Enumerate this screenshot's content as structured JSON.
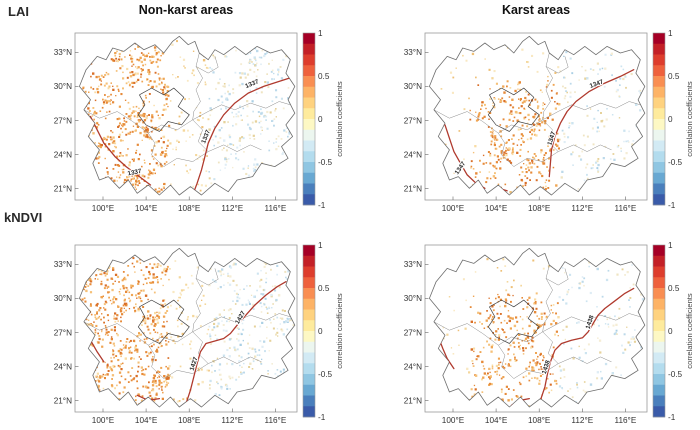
{
  "figure": {
    "rows": [
      {
        "label": "LAI"
      },
      {
        "label": "kNDVI"
      }
    ],
    "columns": [
      {
        "title": "Non-karst areas"
      },
      {
        "title": "Karst areas"
      }
    ]
  },
  "axes": {
    "lat_tick_labels": [
      "33°N",
      "30°N",
      "27°N",
      "24°N",
      "21°N"
    ],
    "lat_tick_values": [
      33,
      30,
      27,
      24,
      21
    ],
    "lon_tick_labels": [
      "100°E",
      "104°E",
      "108°E",
      "112°E",
      "116°E"
    ],
    "lon_tick_values": [
      100,
      104,
      108,
      112,
      116
    ],
    "lon_range": [
      97.4,
      118.0
    ],
    "lat_range": [
      20.0,
      34.7
    ]
  },
  "colorbar": {
    "label": "correlation coefficients",
    "tick_labels": [
      "1",
      "0.5",
      "0",
      "-0.5",
      "-1"
    ],
    "tick_values": [
      1,
      0.5,
      0,
      -0.5,
      -1
    ],
    "range": [
      -1,
      1
    ],
    "segment_colors_top_to_bottom": [
      "#a50026",
      "#c32027",
      "#dd3d2d",
      "#ee613d",
      "#f98e52",
      "#fdb366",
      "#fed27f",
      "#feeb9d",
      "#fdf8c4",
      "#ecf6ef",
      "#d2eaf4",
      "#b3dcee",
      "#8fc6e2",
      "#68a8d2",
      "#4a7fbc",
      "#3a5ba9"
    ]
  },
  "panels": [
    {
      "id": "lai-non-karst",
      "row": "LAI",
      "column": "Non-karst areas",
      "contour_label": "1337"
    },
    {
      "id": "lai-karst",
      "row": "LAI",
      "column": "Karst areas",
      "contour_label": "1347"
    },
    {
      "id": "kndvi-non-karst",
      "row": "kNDVI",
      "column": "Non-karst areas",
      "contour_label": "1427"
    },
    {
      "id": "kndvi-karst",
      "row": "kNDVI",
      "column": "Karst areas",
      "contour_label": "1438"
    }
  ],
  "palette": {
    "map_outline": "#6e6e6e",
    "province_border": "#8a8a8a",
    "karst_boundary": "#3f3f3f",
    "contour_line": "#b03a2e",
    "warm": [
      [
        "#d96f28",
        0.14
      ],
      [
        "#e68a39",
        0.28
      ],
      [
        "#efa553",
        0.28
      ],
      [
        "#f5c078",
        0.2
      ],
      [
        "#f9dca4",
        0.1
      ]
    ],
    "warmPale": [
      [
        "#f4d79c",
        0.4
      ],
      [
        "#f9e8c2",
        0.35
      ],
      [
        "#eec077",
        0.25
      ]
    ],
    "blue": [
      [
        "#cde4f0",
        0.35
      ],
      [
        "#bcd9ea",
        0.3
      ],
      [
        "#dfedf5",
        0.25
      ],
      [
        "#aacfe4",
        0.1
      ]
    ],
    "tan": [
      [
        "#efe4c2",
        0.4
      ],
      [
        "#f5edd5",
        0.35
      ],
      [
        "#e6d29b",
        0.25
      ]
    ]
  },
  "chart_data": [
    {
      "type": "heatmap",
      "panel": "LAI / Non-karst areas",
      "x_axis": {
        "ticks": [
          "100°E",
          "104°E",
          "108°E",
          "112°E",
          "116°E"
        ],
        "range_deg_E": [
          97.4,
          118.0
        ]
      },
      "y_axis": {
        "ticks": [
          "33°N",
          "30°N",
          "27°N",
          "24°N",
          "21°N"
        ],
        "range_deg_N": [
          20.0,
          34.7
        ]
      },
      "colorbar": {
        "label": "correlation coefficients",
        "range": [
          -1,
          1
        ],
        "ticks": [
          1,
          0.5,
          0,
          -0.5,
          -1
        ],
        "discrete_segments": 16
      },
      "contour_line_label": "1337",
      "region_values_approx": {
        "west_dense_orange": 0.45,
        "central_sparse": 0.05,
        "east_pale_blue": -0.15
      }
    },
    {
      "type": "heatmap",
      "panel": "LAI / Karst areas",
      "x_axis": {
        "ticks": [
          "100°E",
          "104°E",
          "108°E",
          "112°E",
          "116°E"
        ],
        "range_deg_E": [
          97.4,
          118.0
        ]
      },
      "y_axis": {
        "ticks": [
          "33°N",
          "30°N",
          "27°N",
          "24°N",
          "21°N"
        ],
        "range_deg_N": [
          20.0,
          34.7
        ]
      },
      "colorbar": {
        "label": "correlation coefficients",
        "range": [
          -1,
          1
        ],
        "ticks": [
          1,
          0.5,
          0,
          -0.5,
          -1
        ],
        "discrete_segments": 16
      },
      "contour_line_label": "1347",
      "region_values_approx": {
        "central_karst_orange": 0.45,
        "north_sparse": 0.0,
        "east_pale_blue": -0.1
      }
    },
    {
      "type": "heatmap",
      "panel": "kNDVI / Non-karst areas",
      "x_axis": {
        "ticks": [
          "100°E",
          "104°E",
          "108°E",
          "112°E",
          "116°E"
        ],
        "range_deg_E": [
          97.4,
          118.0
        ]
      },
      "y_axis": {
        "ticks": [
          "33°N",
          "30°N",
          "27°N",
          "24°N",
          "21°N"
        ],
        "range_deg_N": [
          20.0,
          34.7
        ]
      },
      "colorbar": {
        "label": "correlation coefficients",
        "range": [
          -1,
          1
        ],
        "ticks": [
          1,
          0.5,
          0,
          -0.5,
          -1
        ],
        "discrete_segments": 16
      },
      "contour_line_label": "1427",
      "region_values_approx": {
        "west_dense_orange": 0.45,
        "central_sparse": 0.05,
        "east_pale_blue": -0.15
      }
    },
    {
      "type": "heatmap",
      "panel": "kNDVI / Karst areas",
      "x_axis": {
        "ticks": [
          "100°E",
          "104°E",
          "108°E",
          "112°E",
          "116°E"
        ],
        "range_deg_E": [
          97.4,
          118.0
        ]
      },
      "y_axis": {
        "ticks": [
          "33°N",
          "30°N",
          "27°N",
          "24°N",
          "21°N"
        ],
        "range_deg_N": [
          20.0,
          34.7
        ]
      },
      "colorbar": {
        "label": "correlation coefficients",
        "range": [
          -1,
          1
        ],
        "ticks": [
          1,
          0.5,
          0,
          -0.5,
          -1
        ],
        "discrete_segments": 16
      },
      "contour_line_label": "1438",
      "region_values_approx": {
        "central_karst_orange": 0.4,
        "north_sparse": 0.0,
        "east_pale_tan": 0.05
      }
    }
  ]
}
